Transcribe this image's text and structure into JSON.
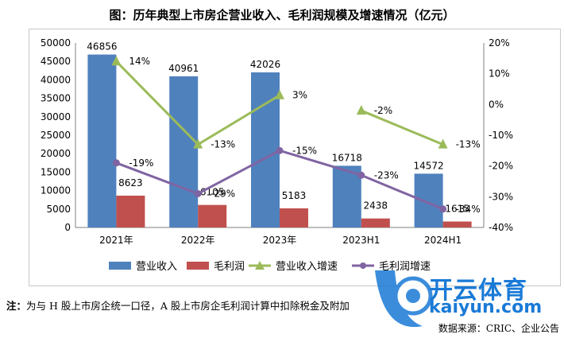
{
  "title": "图：历年典型上市房企营业收入、毛利润规模及增速情况（亿元）",
  "note_prefix": "注：",
  "note_text": "为与 H 股上市房企统一口径，A 股上市房企毛利润计算中扣除税金及附加",
  "source": "数据来源：CRIC、企业公告",
  "watermark": {
    "main": "开云体育",
    "url": "kaiyun.com"
  },
  "colors": {
    "revenue": "#4f81bd",
    "profit": "#c0504d",
    "revenue_growth": "#9bbb59",
    "profit_growth": "#8064a2",
    "axis": "#7f7f7f",
    "grid": "#d9d9d9"
  },
  "chart_data": {
    "type": "bar",
    "title": "历年典型上市房企营业收入、毛利润规模及增速情况（亿元）",
    "categories": [
      "2021年",
      "2022年",
      "2023年",
      "2023H1",
      "2024H1"
    ],
    "ylim": [
      0,
      50000
    ],
    "yticks": [
      0,
      5000,
      10000,
      15000,
      20000,
      25000,
      30000,
      35000,
      40000,
      45000,
      50000
    ],
    "y2lim": [
      -40,
      20
    ],
    "y2ticks": [
      "-40%",
      "-30%",
      "-20%",
      "-10%",
      "0%",
      "10%",
      "20%"
    ],
    "y2tick_values": [
      -40,
      -30,
      -20,
      -10,
      0,
      10,
      20
    ],
    "series": [
      {
        "name": "营业收入",
        "kind": "bar",
        "axis": "left",
        "values": [
          46856,
          40961,
          42026,
          16718,
          14572
        ],
        "labels": [
          "46856",
          "40961",
          "42026",
          "16718",
          "14572"
        ]
      },
      {
        "name": "毛利润",
        "kind": "bar",
        "axis": "left",
        "values": [
          8623,
          6105,
          5183,
          2438,
          1615
        ],
        "labels": [
          "8623",
          "6105",
          "5183",
          "2438",
          "1615"
        ]
      },
      {
        "name": "营业收入增速",
        "kind": "line",
        "axis": "right",
        "marker": "triangle",
        "values": [
          14,
          -13,
          3,
          -2,
          -13
        ],
        "labels": [
          "14%",
          "-13%",
          "3%",
          "-2%",
          "-13%"
        ],
        "segments": [
          [
            0,
            1,
            2
          ],
          [
            3,
            4
          ]
        ]
      },
      {
        "name": "毛利润增速",
        "kind": "line",
        "axis": "right",
        "marker": "circle",
        "values": [
          -19,
          -29,
          -15,
          -23,
          -34
        ],
        "labels": [
          "-19%",
          "-29%",
          "-15%",
          "-23%",
          "-34%"
        ],
        "segments": [
          [
            0,
            1,
            2,
            3,
            4
          ]
        ]
      }
    ],
    "legend": [
      "营业收入",
      "毛利润",
      "营业收入增速",
      "毛利润增速"
    ],
    "legend_position": "bottom"
  }
}
